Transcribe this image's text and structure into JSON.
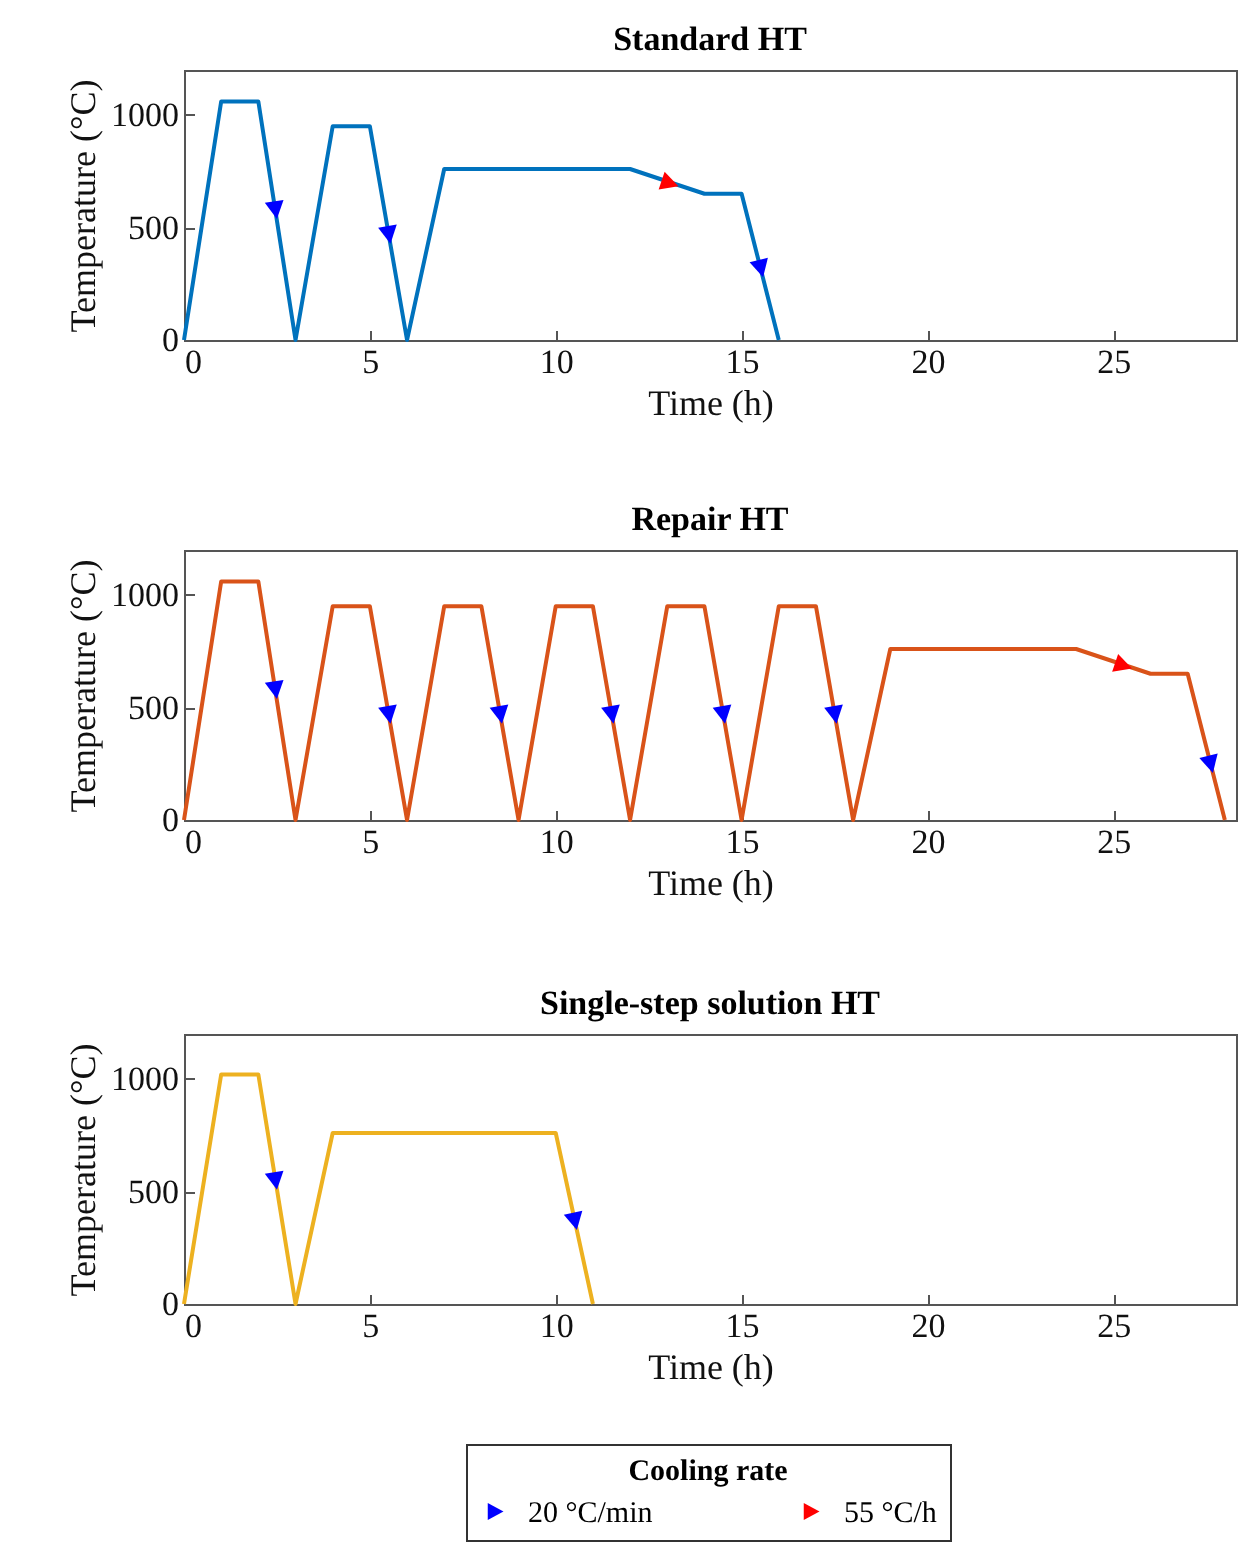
{
  "chart_data": [
    {
      "type": "line",
      "title": "Standard HT",
      "xlabel": "Time (h)",
      "ylabel": "Temperature (°C)",
      "xlim": [
        0,
        28.3
      ],
      "ylim": [
        0,
        1200
      ],
      "xticks": [
        0,
        5,
        10,
        15,
        20,
        25
      ],
      "yticks": [
        0,
        500,
        1000
      ],
      "legend": "bottom",
      "legend_title": "Cooling rate",
      "series": [
        {
          "type": "line",
          "color": "#0072bd",
          "x": [
            0,
            1,
            2,
            3,
            4,
            5,
            6,
            7,
            12,
            14,
            15,
            16
          ],
          "values": [
            0,
            1060,
            1060,
            0,
            950,
            950,
            0,
            760,
            760,
            650,
            650,
            0
          ]
        },
        {
          "type": "scatter",
          "marker": "triangle",
          "name": "20 °C/min",
          "color": "#0000ff",
          "x": [
            2.45,
            5.5,
            15.5
          ],
          "values": [
            590,
            480,
            330
          ]
        },
        {
          "type": "scatter",
          "marker": "triangle",
          "name": "55 °C/h",
          "color": "#ff0000",
          "x": [
            13
          ],
          "values": [
            700
          ]
        }
      ]
    },
    {
      "type": "line",
      "title": "Repair HT",
      "xlabel": "Time (h)",
      "ylabel": "Temperature (°C)",
      "xlim": [
        0,
        28.3
      ],
      "ylim": [
        0,
        1200
      ],
      "xticks": [
        0,
        5,
        10,
        15,
        20,
        25
      ],
      "yticks": [
        0,
        500,
        1000
      ],
      "series": [
        {
          "type": "line",
          "color": "#d95319",
          "x": [
            0,
            1,
            2,
            3,
            4,
            5,
            6,
            7,
            8,
            9,
            10,
            11,
            12,
            13,
            14,
            15,
            16,
            17,
            18,
            19,
            24,
            26,
            27,
            28
          ],
          "values": [
            0,
            1060,
            1060,
            0,
            950,
            950,
            0,
            950,
            950,
            0,
            950,
            950,
            0,
            950,
            950,
            0,
            950,
            950,
            0,
            760,
            760,
            650,
            650,
            0
          ]
        },
        {
          "type": "scatter",
          "marker": "triangle",
          "color": "#0000ff",
          "x": [
            2.45,
            5.5,
            8.5,
            11.5,
            14.5,
            17.5,
            27.6
          ],
          "values": [
            590,
            480,
            480,
            480,
            480,
            480,
            260
          ]
        },
        {
          "type": "scatter",
          "marker": "triangle",
          "color": "#ff0000",
          "x": [
            25.2
          ],
          "values": [
            690
          ]
        }
      ]
    },
    {
      "type": "line",
      "title": "Single-step solution HT",
      "xlabel": "Time (h)",
      "ylabel": "Temperature (°C)",
      "xlim": [
        0,
        28.3
      ],
      "ylim": [
        0,
        1200
      ],
      "xticks": [
        0,
        5,
        10,
        15,
        20,
        25
      ],
      "yticks": [
        0,
        500,
        1000
      ],
      "series": [
        {
          "type": "line",
          "color": "#edb120",
          "x": [
            0,
            1,
            2,
            3,
            4,
            10,
            11
          ],
          "values": [
            0,
            1020,
            1020,
            0,
            760,
            760,
            0
          ]
        },
        {
          "type": "scatter",
          "marker": "triangle",
          "color": "#0000ff",
          "x": [
            2.45,
            10.5
          ],
          "values": [
            560,
            380
          ]
        }
      ]
    }
  ]
}
